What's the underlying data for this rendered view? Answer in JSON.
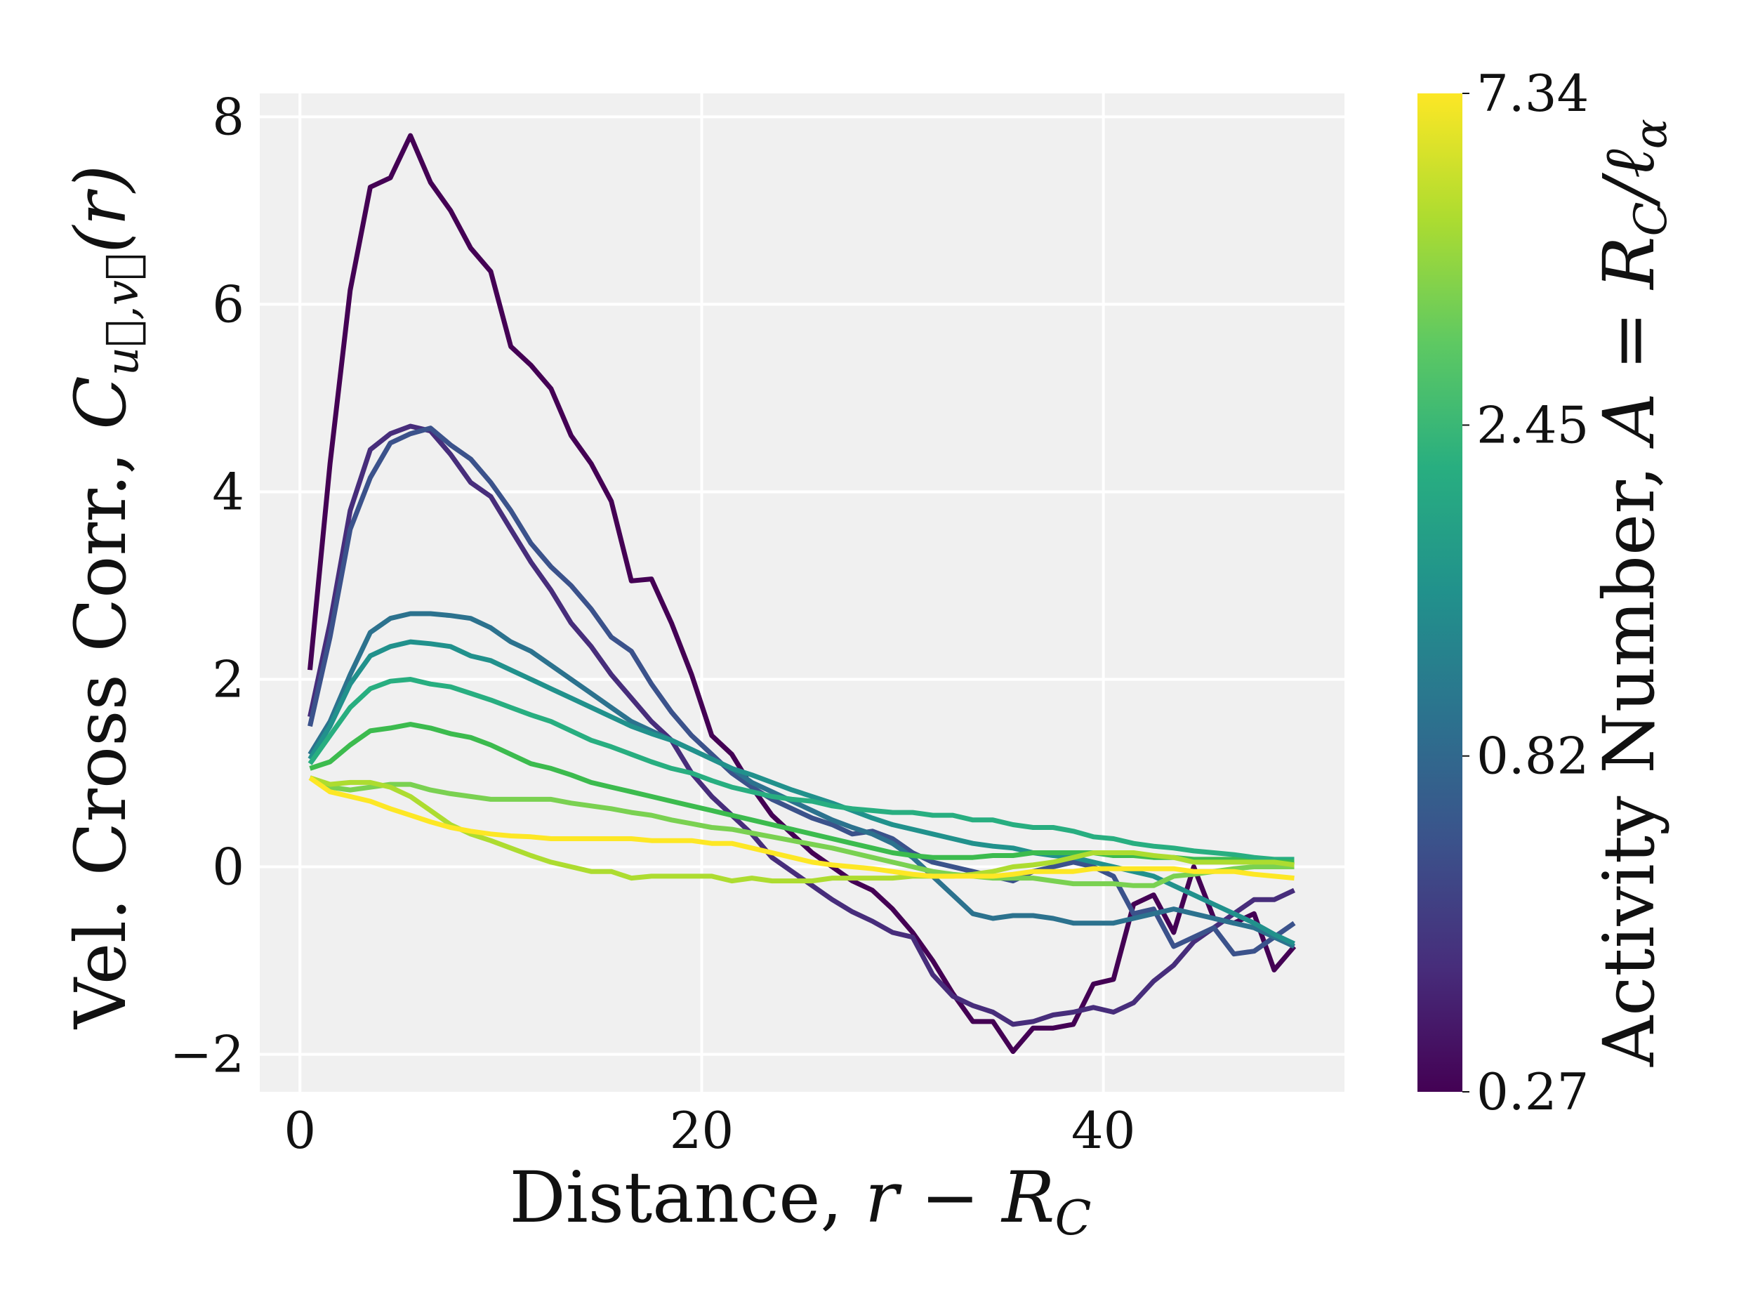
{
  "chart_data": {
    "type": "line",
    "xlabel_text": "Distance, ",
    "xlabel_math": "r − R",
    "xlabel_sub": "C",
    "ylabel_text": "Vel. Cross Corr., ",
    "ylabel_math": "C",
    "ylabel_sub": "u⃗,v⃗",
    "ylabel_arg": "(r)",
    "xlim": [
      -2,
      52
    ],
    "ylim": [
      -2.4,
      8.25
    ],
    "xticks": [
      0,
      20,
      40
    ],
    "yticks": [
      -2,
      0,
      2,
      4,
      6,
      8
    ],
    "ytick_labels": [
      "−2",
      "0",
      "2",
      "4",
      "6",
      "8"
    ],
    "grid": true,
    "background": "#f0f0f0",
    "colorbar": {
      "label_text": "Activity Number, ",
      "label_math": "A = R",
      "label_sub1": "C",
      "label_rest": "/ℓ",
      "label_sub2": "α",
      "ticks": [
        "0.27",
        "0.82",
        "2.45",
        "7.34"
      ],
      "tick_values": [
        0.27,
        0.82,
        2.45,
        7.34
      ],
      "scale": "log",
      "colormap": "viridis",
      "colors": [
        "#440154",
        "#472d7b",
        "#3b528b",
        "#2c728e",
        "#21918c",
        "#28ae80",
        "#5ec962",
        "#addc30",
        "#fde725"
      ]
    },
    "x": [
      0.5,
      1.5,
      2.5,
      3.5,
      4.5,
      5.5,
      6.5,
      7.5,
      8.5,
      9.5,
      10.5,
      11.5,
      12.5,
      13.5,
      14.5,
      15.5,
      16.5,
      17.5,
      18.5,
      19.5,
      20.5,
      21.5,
      22.5,
      23.5,
      24.5,
      25.5,
      26.5,
      27.5,
      28.5,
      29.5,
      30.5,
      31.5,
      32.5,
      33.5,
      34.5,
      35.5,
      36.5,
      37.5,
      38.5,
      39.5,
      40.5,
      41.5,
      42.5,
      43.5,
      44.5,
      45.5,
      46.5,
      47.5,
      48.5,
      49.5
    ],
    "series": [
      {
        "color": "#440154",
        "values": [
          2.1,
          4.3,
          6.15,
          7.25,
          7.35,
          7.8,
          7.3,
          7.0,
          6.6,
          6.35,
          5.55,
          5.35,
          5.1,
          4.6,
          4.3,
          3.9,
          3.05,
          3.07,
          2.6,
          2.05,
          1.4,
          1.2,
          0.85,
          0.55,
          0.35,
          0.15,
          0.0,
          -0.15,
          -0.25,
          -0.45,
          -0.7,
          -1.0,
          -1.35,
          -1.65,
          -1.65,
          -1.97,
          -1.72,
          -1.72,
          -1.68,
          -1.25,
          -1.2,
          -0.4,
          -0.3,
          -0.7,
          0.0,
          -0.55,
          -0.6,
          -0.5,
          -1.1,
          -0.85
        ]
      },
      {
        "color": "#472d7b",
        "values": [
          1.6,
          2.6,
          3.8,
          4.45,
          4.62,
          4.7,
          4.65,
          4.4,
          4.1,
          3.95,
          3.6,
          3.25,
          2.95,
          2.6,
          2.35,
          2.05,
          1.8,
          1.55,
          1.35,
          1.0,
          0.75,
          0.55,
          0.35,
          0.1,
          -0.05,
          -0.2,
          -0.35,
          -0.48,
          -0.58,
          -0.7,
          -0.75,
          -1.15,
          -1.38,
          -1.48,
          -1.55,
          -1.68,
          -1.65,
          -1.58,
          -1.55,
          -1.5,
          -1.55,
          -1.45,
          -1.22,
          -1.05,
          -0.8,
          -0.65,
          -0.5,
          -0.35,
          -0.35,
          -0.25
        ]
      },
      {
        "color": "#3b528b",
        "values": [
          1.5,
          2.45,
          3.6,
          4.15,
          4.52,
          4.62,
          4.68,
          4.5,
          4.35,
          4.1,
          3.8,
          3.45,
          3.2,
          3.0,
          2.75,
          2.45,
          2.3,
          1.95,
          1.65,
          1.4,
          1.2,
          1.0,
          0.85,
          0.72,
          0.62,
          0.52,
          0.45,
          0.35,
          0.38,
          0.3,
          0.15,
          0.05,
          0.0,
          -0.05,
          -0.1,
          -0.15,
          -0.05,
          0.0,
          0.05,
          0.0,
          -0.1,
          -0.5,
          -0.45,
          -0.85,
          -0.75,
          -0.65,
          -0.93,
          -0.9,
          -0.75,
          -0.6
        ]
      },
      {
        "color": "#2c728e",
        "values": [
          1.2,
          1.55,
          2.05,
          2.5,
          2.65,
          2.7,
          2.7,
          2.68,
          2.65,
          2.55,
          2.4,
          2.3,
          2.15,
          2.0,
          1.85,
          1.7,
          1.55,
          1.45,
          1.35,
          1.25,
          1.15,
          1.05,
          0.9,
          0.8,
          0.7,
          0.6,
          0.5,
          0.42,
          0.35,
          0.25,
          0.1,
          -0.1,
          -0.3,
          -0.5,
          -0.55,
          -0.52,
          -0.52,
          -0.55,
          -0.6,
          -0.6,
          -0.6,
          -0.55,
          -0.5,
          -0.45,
          -0.5,
          -0.55,
          -0.6,
          -0.65,
          -0.75,
          -0.85
        ]
      },
      {
        "color": "#21918c",
        "values": [
          1.15,
          1.5,
          1.95,
          2.25,
          2.35,
          2.4,
          2.38,
          2.35,
          2.25,
          2.2,
          2.1,
          2.0,
          1.9,
          1.8,
          1.7,
          1.6,
          1.5,
          1.42,
          1.35,
          1.25,
          1.15,
          1.05,
          0.98,
          0.9,
          0.82,
          0.75,
          0.68,
          0.6,
          0.52,
          0.45,
          0.4,
          0.35,
          0.3,
          0.25,
          0.22,
          0.2,
          0.15,
          0.12,
          0.1,
          0.05,
          0.0,
          -0.05,
          -0.1,
          -0.2,
          -0.3,
          -0.4,
          -0.5,
          -0.6,
          -0.72,
          -0.82
        ]
      },
      {
        "color": "#28ae80",
        "values": [
          1.1,
          1.4,
          1.7,
          1.9,
          1.98,
          2.0,
          1.95,
          1.92,
          1.85,
          1.78,
          1.7,
          1.62,
          1.55,
          1.45,
          1.35,
          1.28,
          1.2,
          1.12,
          1.05,
          1.0,
          0.92,
          0.85,
          0.8,
          0.75,
          0.72,
          0.7,
          0.65,
          0.62,
          0.6,
          0.58,
          0.58,
          0.55,
          0.55,
          0.5,
          0.5,
          0.45,
          0.42,
          0.42,
          0.38,
          0.32,
          0.3,
          0.25,
          0.22,
          0.2,
          0.17,
          0.15,
          0.13,
          0.1,
          0.08,
          0.08
        ]
      },
      {
        "color": "#3cbb4e",
        "values": [
          1.05,
          1.12,
          1.3,
          1.45,
          1.48,
          1.52,
          1.48,
          1.42,
          1.38,
          1.3,
          1.2,
          1.1,
          1.05,
          0.98,
          0.9,
          0.85,
          0.8,
          0.75,
          0.7,
          0.65,
          0.6,
          0.55,
          0.5,
          0.45,
          0.4,
          0.35,
          0.3,
          0.25,
          0.2,
          0.15,
          0.12,
          0.1,
          0.1,
          0.1,
          0.12,
          0.12,
          0.15,
          0.15,
          0.15,
          0.15,
          0.12,
          0.12,
          0.1,
          0.1,
          0.08,
          0.08,
          0.08,
          0.05,
          0.05,
          0.05
        ]
      },
      {
        "color": "#7ad151",
        "values": [
          0.95,
          0.85,
          0.82,
          0.85,
          0.88,
          0.88,
          0.82,
          0.78,
          0.75,
          0.72,
          0.72,
          0.72,
          0.72,
          0.68,
          0.65,
          0.62,
          0.58,
          0.55,
          0.5,
          0.46,
          0.42,
          0.4,
          0.36,
          0.32,
          0.28,
          0.24,
          0.2,
          0.15,
          0.1,
          0.05,
          0.0,
          -0.05,
          -0.08,
          -0.1,
          -0.12,
          -0.12,
          -0.12,
          -0.15,
          -0.18,
          -0.18,
          -0.18,
          -0.2,
          -0.2,
          -0.1,
          -0.08,
          -0.05,
          -0.02,
          0.0,
          0.0,
          0.0
        ]
      },
      {
        "color": "#addc30",
        "values": [
          0.95,
          0.88,
          0.9,
          0.9,
          0.85,
          0.75,
          0.6,
          0.45,
          0.35,
          0.28,
          0.2,
          0.12,
          0.05,
          0.0,
          -0.05,
          -0.05,
          -0.12,
          -0.1,
          -0.1,
          -0.1,
          -0.1,
          -0.15,
          -0.12,
          -0.15,
          -0.15,
          -0.15,
          -0.12,
          -0.12,
          -0.12,
          -0.12,
          -0.1,
          -0.1,
          -0.1,
          -0.08,
          -0.05,
          0.0,
          0.02,
          0.05,
          0.1,
          0.15,
          0.15,
          0.15,
          0.12,
          0.1,
          0.05,
          0.05,
          0.05,
          0.05,
          0.05,
          0.02
        ]
      },
      {
        "color": "#fde725",
        "values": [
          0.95,
          0.8,
          0.75,
          0.7,
          0.62,
          0.55,
          0.48,
          0.42,
          0.38,
          0.35,
          0.33,
          0.32,
          0.3,
          0.3,
          0.3,
          0.3,
          0.3,
          0.28,
          0.28,
          0.28,
          0.25,
          0.25,
          0.2,
          0.15,
          0.1,
          0.05,
          0.02,
          0.0,
          -0.02,
          -0.05,
          -0.08,
          -0.1,
          -0.1,
          -0.1,
          -0.1,
          -0.08,
          -0.05,
          -0.05,
          -0.05,
          -0.02,
          -0.02,
          -0.02,
          -0.02,
          -0.02,
          -0.05,
          -0.05,
          -0.05,
          -0.08,
          -0.1,
          -0.12
        ]
      }
    ]
  }
}
